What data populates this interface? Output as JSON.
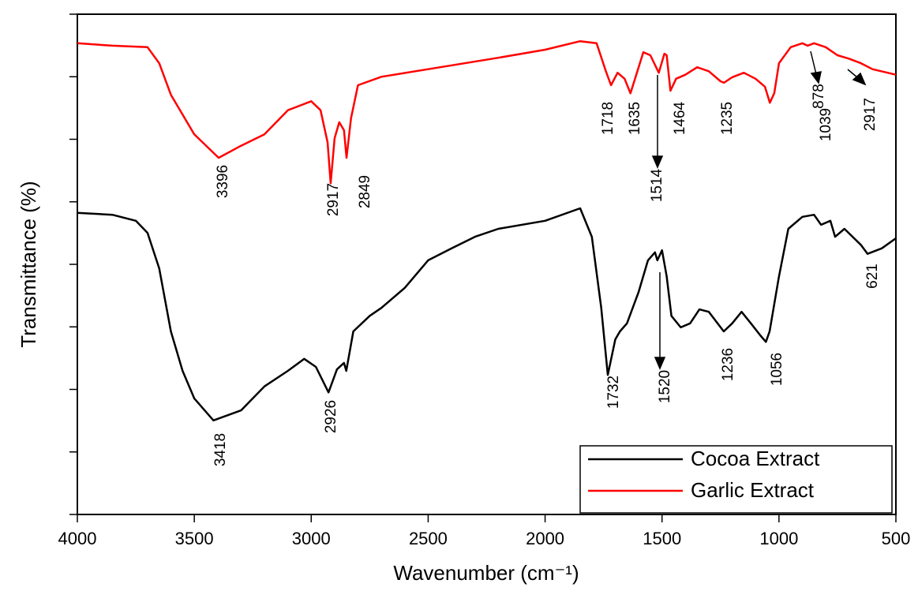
{
  "chart_data": {
    "type": "line",
    "x_label": "Wavenumber (cm⁻¹)",
    "y_label": "Transmittance (%)",
    "xlim": [
      4000,
      500
    ],
    "xticks": [
      4000,
      3500,
      3000,
      2500,
      2000,
      1500,
      1000,
      500
    ],
    "ylim": [
      0,
      100
    ],
    "yticks": [
      0,
      12.5,
      25,
      37.5,
      50,
      62.5,
      75,
      87.5,
      100
    ],
    "ytick_labels": false,
    "legend": "lower right",
    "series": [
      {
        "name": "Cocoa Extract",
        "color": "#000000",
        "x": [
          4000,
          3850,
          3750,
          3700,
          3650,
          3600,
          3550,
          3500,
          3418,
          3300,
          3200,
          3100,
          3030,
          2980,
          2926,
          2890,
          2860,
          2850,
          2820,
          2750,
          2700,
          2600,
          2500,
          2400,
          2300,
          2200,
          2000,
          1850,
          1800,
          1760,
          1732,
          1700,
          1680,
          1650,
          1600,
          1560,
          1530,
          1520,
          1500,
          1480,
          1460,
          1420,
          1380,
          1340,
          1300,
          1236,
          1200,
          1160,
          1120,
          1080,
          1056,
          1040,
          1000,
          960,
          900,
          850,
          820,
          780,
          760,
          720,
          650,
          621,
          560,
          500
        ],
        "values": [
          60.3,
          59.9,
          58.7,
          56.3,
          49.2,
          36.6,
          28.7,
          23.2,
          18.8,
          20.8,
          25.6,
          28.7,
          31.1,
          29.5,
          24.4,
          29.0,
          30.3,
          28.7,
          36.6,
          39.7,
          41.3,
          45.3,
          50.8,
          53.2,
          55.5,
          57.1,
          58.7,
          61.2,
          55.5,
          41.3,
          27.9,
          35.0,
          36.6,
          38.2,
          44.5,
          50.8,
          52.4,
          50.8,
          52.8,
          47.6,
          39.7,
          37.4,
          38.2,
          41.0,
          40.5,
          36.6,
          38.2,
          40.5,
          38.2,
          35.8,
          34.5,
          36.6,
          47.6,
          57.1,
          59.5,
          59.9,
          57.9,
          58.7,
          55.5,
          57.1,
          53.9,
          52.1,
          53.2,
          55.2
        ]
      },
      {
        "name": "Garlic Extract",
        "color": "#ff0000",
        "x": [
          4000,
          3850,
          3700,
          3650,
          3600,
          3500,
          3396,
          3300,
          3200,
          3100,
          3000,
          2960,
          2930,
          2917,
          2900,
          2880,
          2860,
          2849,
          2830,
          2800,
          2700,
          2500,
          2200,
          2000,
          1850,
          1780,
          1740,
          1718,
          1690,
          1660,
          1635,
          1610,
          1580,
          1550,
          1514,
          1490,
          1480,
          1464,
          1440,
          1400,
          1350,
          1300,
          1250,
          1235,
          1200,
          1150,
          1100,
          1060,
          1039,
          1020,
          1000,
          950,
          900,
          878,
          850,
          800,
          750,
          700,
          650,
          600,
          500
        ],
        "values": [
          94.2,
          93.7,
          93.4,
          90.2,
          83.9,
          76.0,
          71.3,
          73.7,
          76.0,
          80.8,
          82.6,
          80.8,
          74.4,
          66.2,
          75.2,
          78.4,
          76.8,
          71.3,
          79.2,
          85.8,
          87.5,
          89.0,
          91.3,
          92.9,
          94.6,
          94.2,
          88.6,
          85.8,
          88.3,
          87.1,
          84.2,
          87.9,
          92.4,
          91.8,
          88.3,
          92.1,
          91.8,
          84.7,
          87.1,
          87.9,
          89.4,
          88.6,
          86.6,
          86.3,
          87.4,
          88.3,
          87.1,
          85.5,
          82.3,
          84.2,
          90.2,
          93.4,
          94.2,
          93.7,
          94.2,
          93.4,
          91.8,
          91.1,
          90.2,
          89.0,
          87.9
        ]
      }
    ],
    "annotations": [
      "3396",
      "2917",
      "2849",
      "1718",
      "1635",
      "1514",
      "1464",
      "1235",
      "1039",
      "878",
      "2917",
      "3418",
      "2926",
      "1732",
      "1520",
      "1236",
      "1056",
      "621"
    ]
  }
}
